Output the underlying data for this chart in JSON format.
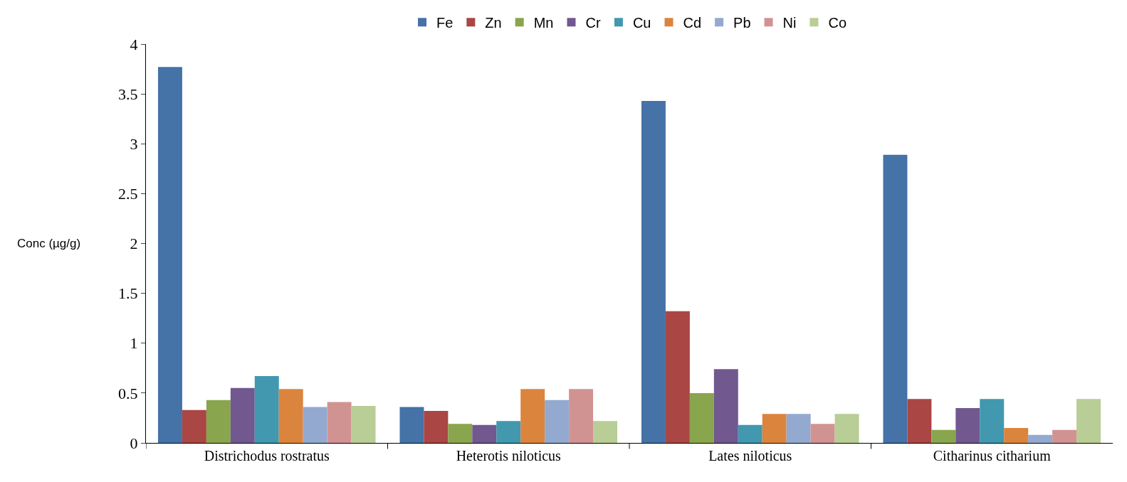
{
  "chart_data": {
    "type": "bar",
    "ylabel": "Conc (µg/g)",
    "categories": [
      "Districhodus rostratus",
      "Heterotis niloticus",
      "Lates niloticus",
      "Citharinus citharium"
    ],
    "series": [
      {
        "name": "Fe",
        "color": "#4572a7",
        "values": [
          3.77,
          0.36,
          3.43,
          2.89
        ]
      },
      {
        "name": "Zn",
        "color": "#aa4643",
        "values": [
          0.33,
          0.32,
          1.32,
          0.44
        ]
      },
      {
        "name": "Mn",
        "color": "#89a54e",
        "values": [
          0.43,
          0.19,
          0.5,
          0.13
        ]
      },
      {
        "name": "Cr",
        "color": "#71588f",
        "values": [
          0.55,
          0.18,
          0.74,
          0.35
        ]
      },
      {
        "name": "Cu",
        "color": "#4198af",
        "values": [
          0.67,
          0.22,
          0.18,
          0.44
        ]
      },
      {
        "name": "Cd",
        "color": "#db843d",
        "values": [
          0.54,
          0.54,
          0.29,
          0.15
        ]
      },
      {
        "name": "Pb",
        "color": "#93a9cf",
        "values": [
          0.36,
          0.43,
          0.29,
          0.08
        ]
      },
      {
        "name": "Ni",
        "color": "#d19392",
        "values": [
          0.41,
          0.54,
          0.19,
          0.13
        ]
      },
      {
        "name": "Co",
        "color": "#b9cd96",
        "values": [
          0.37,
          0.22,
          0.29,
          0.44
        ]
      }
    ],
    "ylim": [
      0,
      4
    ],
    "yticks": [
      0,
      0.5,
      1,
      1.5,
      2,
      2.5,
      3,
      3.5,
      4
    ],
    "legend": "top"
  }
}
